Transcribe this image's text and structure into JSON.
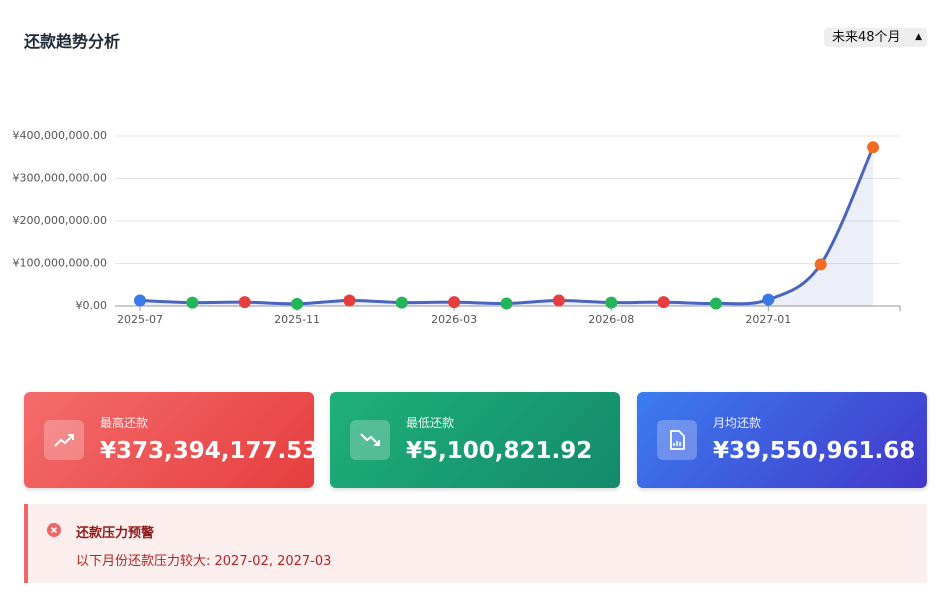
{
  "header": {
    "title": "还款趋势分析",
    "select": "未来48个月"
  },
  "chart_data": {
    "type": "line",
    "categories": [
      "2025-07",
      null,
      null,
      "2025-11",
      null,
      null,
      "2026-03",
      null,
      null,
      "2026-08",
      null,
      null,
      "2027-01",
      null,
      null
    ],
    "values": [
      13000000,
      8000000,
      9000000,
      5100821.92,
      13000000,
      8000000,
      9000000,
      6000000,
      13000000,
      8000000,
      9000000,
      6000000,
      15000000,
      98000000,
      373394177.53
    ],
    "color": "#4a65bf",
    "point_colors": [
      "#3b7ae6",
      "#22b55a",
      "#e63e3e",
      "#22b55a",
      "#e63e3e",
      "#22b55a",
      "#e63e3e",
      "#22b55a",
      "#e63e3e",
      "#22b55a",
      "#e63e3e",
      "#22b55a",
      "#3b7ae6",
      "#f26b22",
      "#f26b22"
    ],
    "ylim": [
      0,
      400000000
    ],
    "yticks": [
      {
        "value": 0,
        "label": "¥0.00"
      },
      {
        "value": 100000000,
        "label": "¥100,000,000.00"
      },
      {
        "value": 200000000,
        "label": "¥200,000,000.00"
      },
      {
        "value": 300000000,
        "label": "¥300,000,000.00"
      },
      {
        "value": 400000000,
        "label": "¥400,000,000.00"
      }
    ],
    "grid": true
  },
  "cards": [
    {
      "label": "最高还款",
      "value": "¥373,394,177.53"
    },
    {
      "label": "最低还款",
      "value": "¥5,100,821.92"
    },
    {
      "label": "月均还款",
      "value": "¥39,550,961.68"
    }
  ],
  "alert": {
    "title": "还款压力预警",
    "message": "以下月份还款压力较大: 2027-02, 2027-03"
  }
}
